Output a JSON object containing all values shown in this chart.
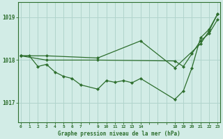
{
  "xlabel": "Graphe pression niveau de la mer (hPa)",
  "background_color": "#d2ece6",
  "grid_color": "#b0d4cc",
  "line_color": "#2d6e2d",
  "ylim": [
    1016.55,
    1019.35
  ],
  "yticks": [
    1017,
    1018,
    1019
  ],
  "xtick_labels": [
    "0",
    "1",
    "2",
    "3",
    "4",
    "5",
    "6",
    "7",
    "",
    "9",
    "10",
    "11",
    "12",
    "13",
    "14",
    "",
    "",
    "",
    "18",
    "19",
    "20",
    "21",
    "22",
    "23"
  ],
  "series": [
    {
      "xi": [
        0,
        1,
        2,
        3,
        4,
        5,
        6,
        7,
        9,
        10,
        11,
        12,
        13,
        14,
        18,
        19,
        20,
        21,
        22,
        23
      ],
      "y": [
        1018.1,
        1018.1,
        1017.85,
        1017.9,
        1017.72,
        1017.62,
        1017.57,
        1017.42,
        1017.32,
        1017.52,
        1017.48,
        1017.52,
        1017.47,
        1017.57,
        1017.08,
        1017.28,
        1017.82,
        1018.52,
        1018.72,
        1019.08
      ]
    },
    {
      "xi": [
        0,
        3,
        9,
        18,
        19,
        20,
        21,
        22,
        23
      ],
      "y": [
        1018.1,
        1018.0,
        1018.0,
        1017.98,
        1017.85,
        1018.15,
        1018.45,
        1018.62,
        1018.95
      ]
    },
    {
      "xi": [
        0,
        3,
        9,
        14,
        18,
        21,
        22,
        23
      ],
      "y": [
        1018.1,
        1018.1,
        1018.05,
        1018.45,
        1017.82,
        1018.38,
        1018.68,
        1019.08
      ]
    }
  ]
}
